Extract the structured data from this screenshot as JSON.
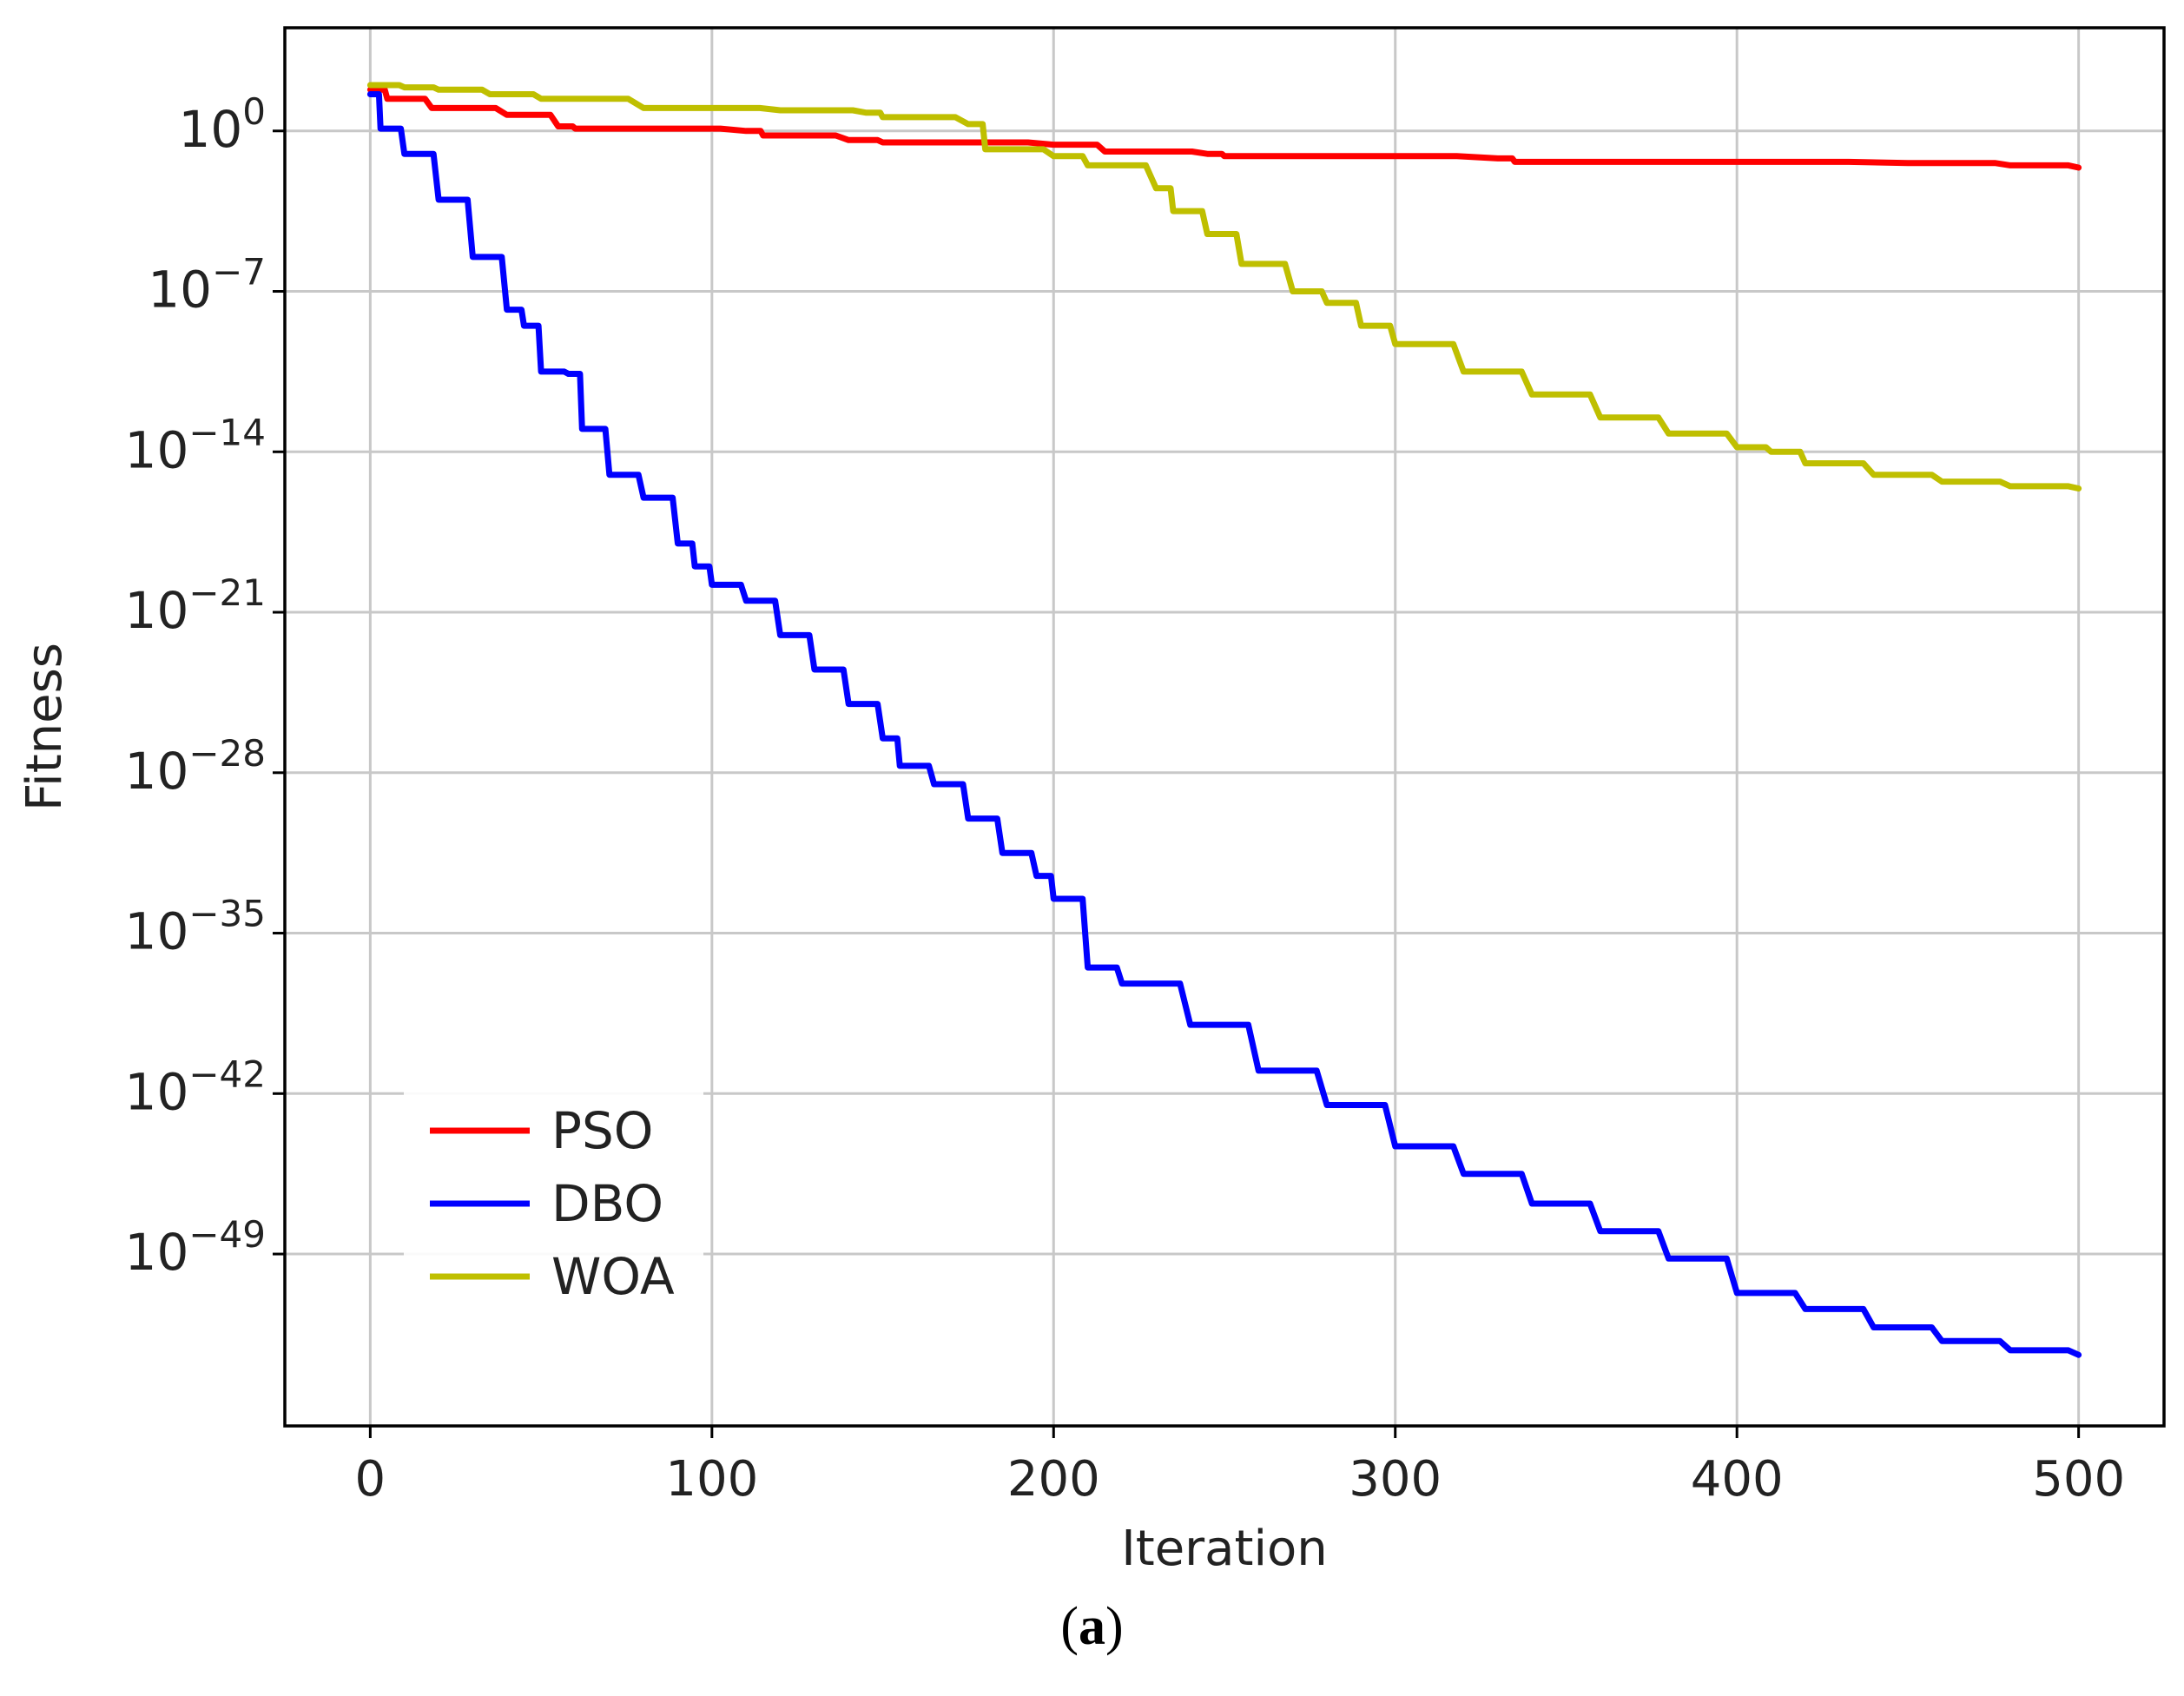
{
  "chart_data": {
    "type": "line",
    "xlabel": "Iteration",
    "ylabel": "Fitness",
    "y_scale": "log",
    "x_ticks": [
      0,
      100,
      200,
      300,
      400,
      500
    ],
    "y_tick_exponents": [
      0,
      -7,
      -14,
      -21,
      -28,
      -35,
      -42,
      -49
    ],
    "xlim": [
      -25,
      525
    ],
    "ylim_log10": [
      -56.5,
      4.5
    ],
    "grid": true,
    "legend_position": "lower-left",
    "colors": {
      "PSO": "#ff0000",
      "DBO": "#0000ff",
      "WOA": "#bfbf00"
    },
    "series": [
      {
        "name": "PSO",
        "x": [
          0,
          5,
          18,
          40,
          55,
          60,
          110,
          115,
          140,
          150,
          200,
          215,
          245,
          250,
          330,
          335,
          450,
          480,
          500
        ],
        "log10": [
          1.8,
          1.4,
          1.0,
          0.7,
          0.2,
          0.1,
          0.0,
          -0.2,
          -0.4,
          -0.5,
          -0.6,
          -0.9,
          -1.0,
          -1.1,
          -1.2,
          -1.35,
          -1.4,
          -1.5,
          -1.6
        ]
      },
      {
        "name": "DBO",
        "x": [
          0,
          3,
          10,
          20,
          30,
          40,
          45,
          50,
          58,
          62,
          70,
          80,
          90,
          95,
          100,
          110,
          120,
          130,
          140,
          150,
          155,
          165,
          175,
          185,
          195,
          200,
          210,
          220,
          240,
          260,
          280,
          300,
          320,
          340,
          360,
          380,
          400,
          420,
          440,
          460,
          480,
          500
        ],
        "log10": [
          1.6,
          0.1,
          -1.0,
          -3.0,
          -5.5,
          -7.8,
          -8.5,
          -10.5,
          -10.6,
          -13.0,
          -15.0,
          -16.0,
          -18.0,
          -19.0,
          -19.8,
          -20.5,
          -22.0,
          -23.5,
          -25.0,
          -26.5,
          -27.7,
          -28.5,
          -30.0,
          -31.5,
          -32.5,
          -33.5,
          -36.5,
          -37.2,
          -39.0,
          -41.0,
          -42.5,
          -44.3,
          -45.5,
          -46.8,
          -48.0,
          -49.2,
          -50.7,
          -51.4,
          -52.2,
          -52.8,
          -53.2,
          -53.4
        ]
      },
      {
        "name": "WOA",
        "x": [
          0,
          10,
          20,
          35,
          50,
          80,
          120,
          145,
          150,
          175,
          180,
          200,
          210,
          230,
          235,
          245,
          255,
          270,
          280,
          290,
          300,
          320,
          340,
          360,
          380,
          400,
          410,
          420,
          440,
          460,
          480,
          500
        ],
        "log10": [
          2.0,
          1.9,
          1.8,
          1.6,
          1.4,
          1.0,
          0.9,
          0.8,
          0.6,
          0.3,
          -0.8,
          -1.1,
          -1.5,
          -2.5,
          -3.5,
          -4.5,
          -5.8,
          -7.0,
          -7.5,
          -8.5,
          -9.3,
          -10.5,
          -11.5,
          -12.5,
          -13.2,
          -13.8,
          -14.0,
          -14.5,
          -15.0,
          -15.3,
          -15.5,
          -15.6
        ]
      }
    ]
  },
  "caption": {
    "open": "(",
    "letter": "a",
    "close": ")"
  }
}
